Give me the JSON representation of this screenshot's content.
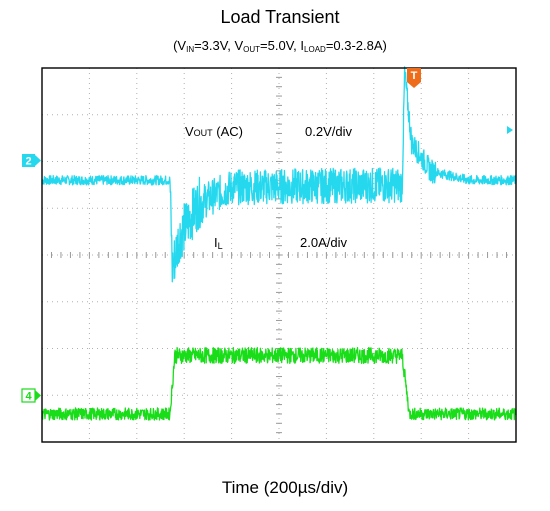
{
  "chart_data": {
    "type": "line",
    "title": "Load Transient",
    "subtitle": {
      "open": "(V",
      "vin_sub": "IN",
      "vin_val": "=3.3V, V",
      "vout_sub": "OUT",
      "vout_val": "=5.0V, I",
      "iload_sub": "LOAD",
      "iload_val": "=0.3-2.8A)"
    },
    "xlabel": "Time (200µs/div)",
    "x_divisions": 10,
    "y_divisions": 8,
    "trigger_marker": "T",
    "trigger_color": "#ef6c1a",
    "series": [
      {
        "channel": "2",
        "label_main": "V",
        "label_sub": "OUT",
        "label_rest": " (AC)",
        "scale": "0.2V/div",
        "color": "#25d8ee",
        "t_div": [
          0,
          2.7,
          2.75,
          2.9,
          3.3,
          4.0,
          7.6,
          7.65,
          7.8,
          8.2,
          9.0,
          10.0
        ],
        "v_div": [
          0,
          0,
          -1.9,
          -1.2,
          -0.5,
          -0.15,
          -0.1,
          2.3,
          0.8,
          0.2,
          0,
          0
        ]
      },
      {
        "channel": "4",
        "label_main": "I",
        "label_sub": "L",
        "label_rest": "",
        "scale": "2.0A/div",
        "color": "#19dd19",
        "t_div": [
          0,
          2.7,
          2.8,
          7.6,
          7.75,
          8.0,
          10.0
        ],
        "i_A": [
          0.3,
          0.3,
          2.8,
          2.8,
          0.3,
          0.3,
          0.3
        ]
      }
    ]
  }
}
